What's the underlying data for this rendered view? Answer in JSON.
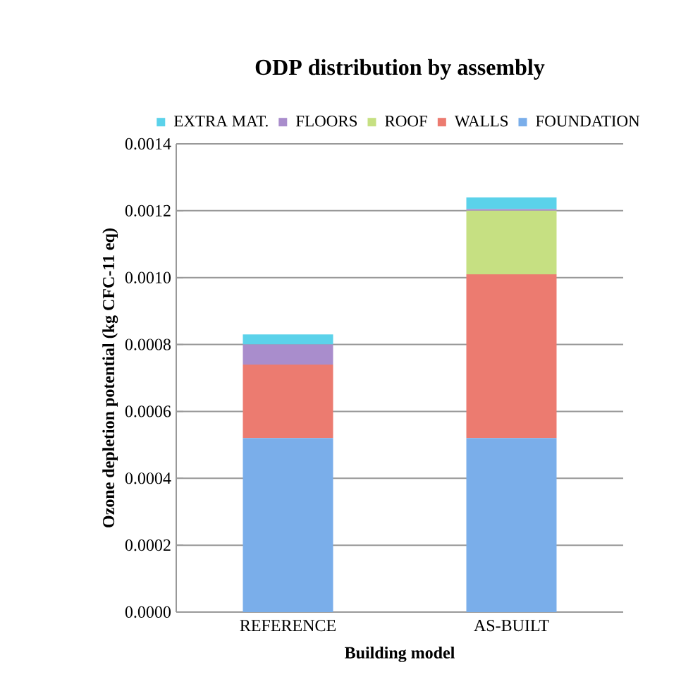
{
  "chart_data": {
    "type": "bar",
    "stacked": true,
    "title": "ODP distribution by assembly",
    "xlabel": "Building model",
    "ylabel": "Ozone depletion potential (kg CFC-11 eq)",
    "categories": [
      "REFERENCE",
      "AS-BUILT"
    ],
    "series": [
      {
        "name": "FOUNDATION",
        "color": "#7aaeea",
        "values": [
          0.00052,
          0.00052
        ]
      },
      {
        "name": "WALLS",
        "color": "#ec7b70",
        "values": [
          0.00022,
          0.00049
        ]
      },
      {
        "name": "ROOF",
        "color": "#c6e082",
        "values": [
          0,
          0.00019
        ]
      },
      {
        "name": "FLOORS",
        "color": "#a98dcc",
        "values": [
          6e-05,
          5e-06
        ]
      },
      {
        "name": "EXTRA MAT.",
        "color": "#5bd2ea",
        "values": [
          3e-05,
          3.5e-05
        ]
      }
    ],
    "ylim": [
      0,
      0.0014
    ],
    "yticks": [
      {
        "value": 0,
        "label": "0.0000"
      },
      {
        "value": 0.0002,
        "label": "0.0002"
      },
      {
        "value": 0.0004,
        "label": "0.0004"
      },
      {
        "value": 0.0006,
        "label": "0.0006"
      },
      {
        "value": 0.0008,
        "label": "0.0008"
      },
      {
        "value": 0.001,
        "label": "0.0010"
      },
      {
        "value": 0.0012,
        "label": "0.0012"
      },
      {
        "value": 0.0014,
        "label": "0.0014"
      }
    ],
    "grid": "y",
    "legend": "top"
  }
}
